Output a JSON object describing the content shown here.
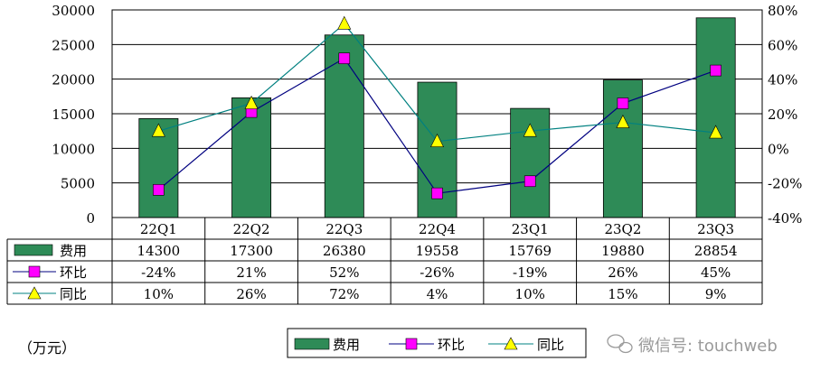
{
  "chart_data": {
    "type": "bar",
    "categories": [
      "22Q1",
      "22Q2",
      "22Q3",
      "22Q4",
      "23Q1",
      "23Q2",
      "23Q3"
    ],
    "series": [
      {
        "name": "费用",
        "kind": "bar",
        "axis": "left",
        "color": "#2e8b57",
        "values": [
          14300,
          17300,
          26380,
          19558,
          15769,
          19880,
          28854
        ],
        "display": [
          "14300",
          "17300",
          "26380",
          "19558",
          "15769",
          "19880",
          "28854"
        ]
      },
      {
        "name": "环比",
        "kind": "line",
        "axis": "right",
        "color": "#000080",
        "marker_color": "#ff00ff",
        "marker": "square",
        "values": [
          -24,
          21,
          52,
          -26,
          -19,
          26,
          45
        ],
        "display": [
          "-24%",
          "21%",
          "52%",
          "-26%",
          "-19%",
          "26%",
          "45%"
        ]
      },
      {
        "name": "同比",
        "kind": "line",
        "axis": "right",
        "color": "#008080",
        "marker_color": "#ffff00",
        "marker": "triangle",
        "values": [
          10,
          26,
          72,
          4,
          10,
          15,
          9
        ],
        "display": [
          "10%",
          "26%",
          "72%",
          "4%",
          "10%",
          "15%",
          "9%"
        ]
      }
    ],
    "ylim_left": [
      0,
      30000
    ],
    "yticks_left": [
      "0",
      "5000",
      "10000",
      "15000",
      "20000",
      "25000",
      "30000"
    ],
    "ylim_right": [
      -40,
      80
    ],
    "yticks_right": [
      "-40%",
      "-20%",
      "0%",
      "20%",
      "40%",
      "60%",
      "80%"
    ],
    "unit_label": "（万元）",
    "grid": true,
    "legend_position": "bottom"
  },
  "watermark": {
    "text": "微信号: touchweb"
  }
}
